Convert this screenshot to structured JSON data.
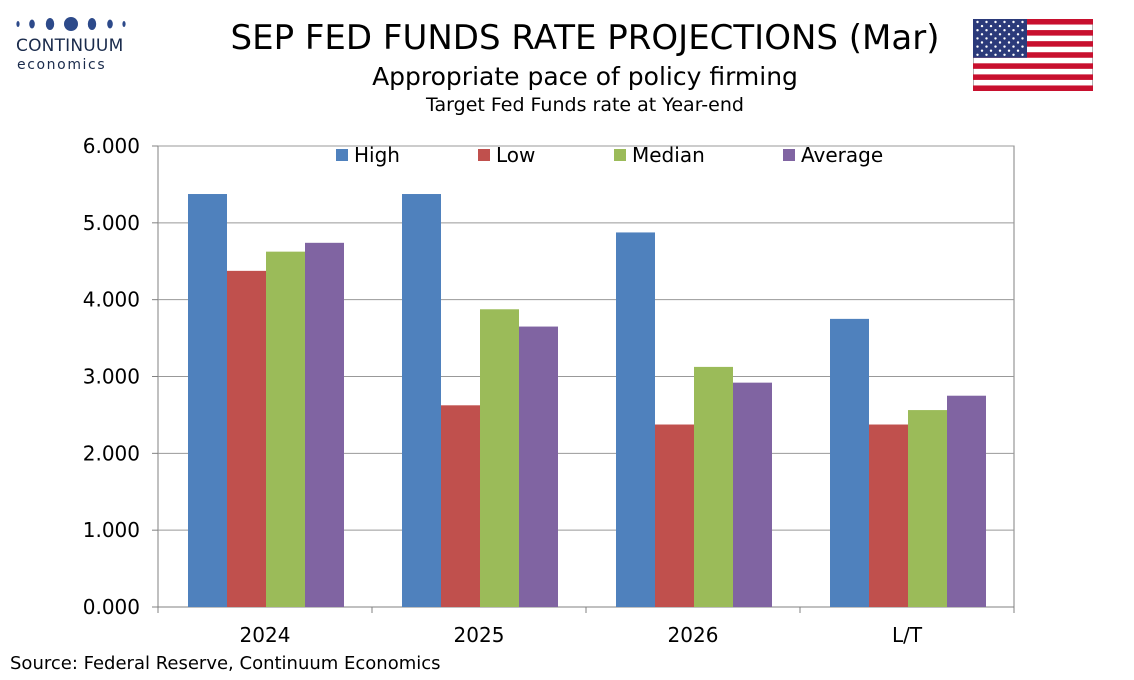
{
  "logo": {
    "word": "CONTINUUM",
    "sub": "economics",
    "color": "#1a2b4c"
  },
  "header": {
    "title": "SEP FED FUNDS RATE PROJECTIONS (Mar)",
    "subtitle": "Appropriate pace of policy firming",
    "subtitle2": "Target Fed Funds rate at Year-end"
  },
  "flag": {
    "country": "United States",
    "icon": "us-flag-icon"
  },
  "source": "Source: Federal Reserve, Continuum Economics",
  "chart_data": {
    "type": "bar",
    "categories": [
      "2024",
      "2025",
      "2026",
      "L/T"
    ],
    "series": [
      {
        "name": "High",
        "color": "#4f81bd",
        "values": [
          5.375,
          5.375,
          4.875,
          3.75
        ]
      },
      {
        "name": "Low",
        "color": "#c0504d",
        "values": [
          4.375,
          2.625,
          2.375,
          2.375
        ]
      },
      {
        "name": "Median",
        "color": "#9bbb59",
        "values": [
          4.625,
          3.875,
          3.125,
          2.563
        ]
      },
      {
        "name": "Average",
        "color": "#8064a2",
        "values": [
          4.74,
          3.65,
          2.92,
          2.75
        ]
      }
    ],
    "ylim": [
      0,
      6
    ],
    "yticks": [
      "0.000",
      "1.000",
      "2.000",
      "3.000",
      "4.000",
      "5.000",
      "6.000"
    ],
    "grid": true,
    "legend_position": "top"
  }
}
